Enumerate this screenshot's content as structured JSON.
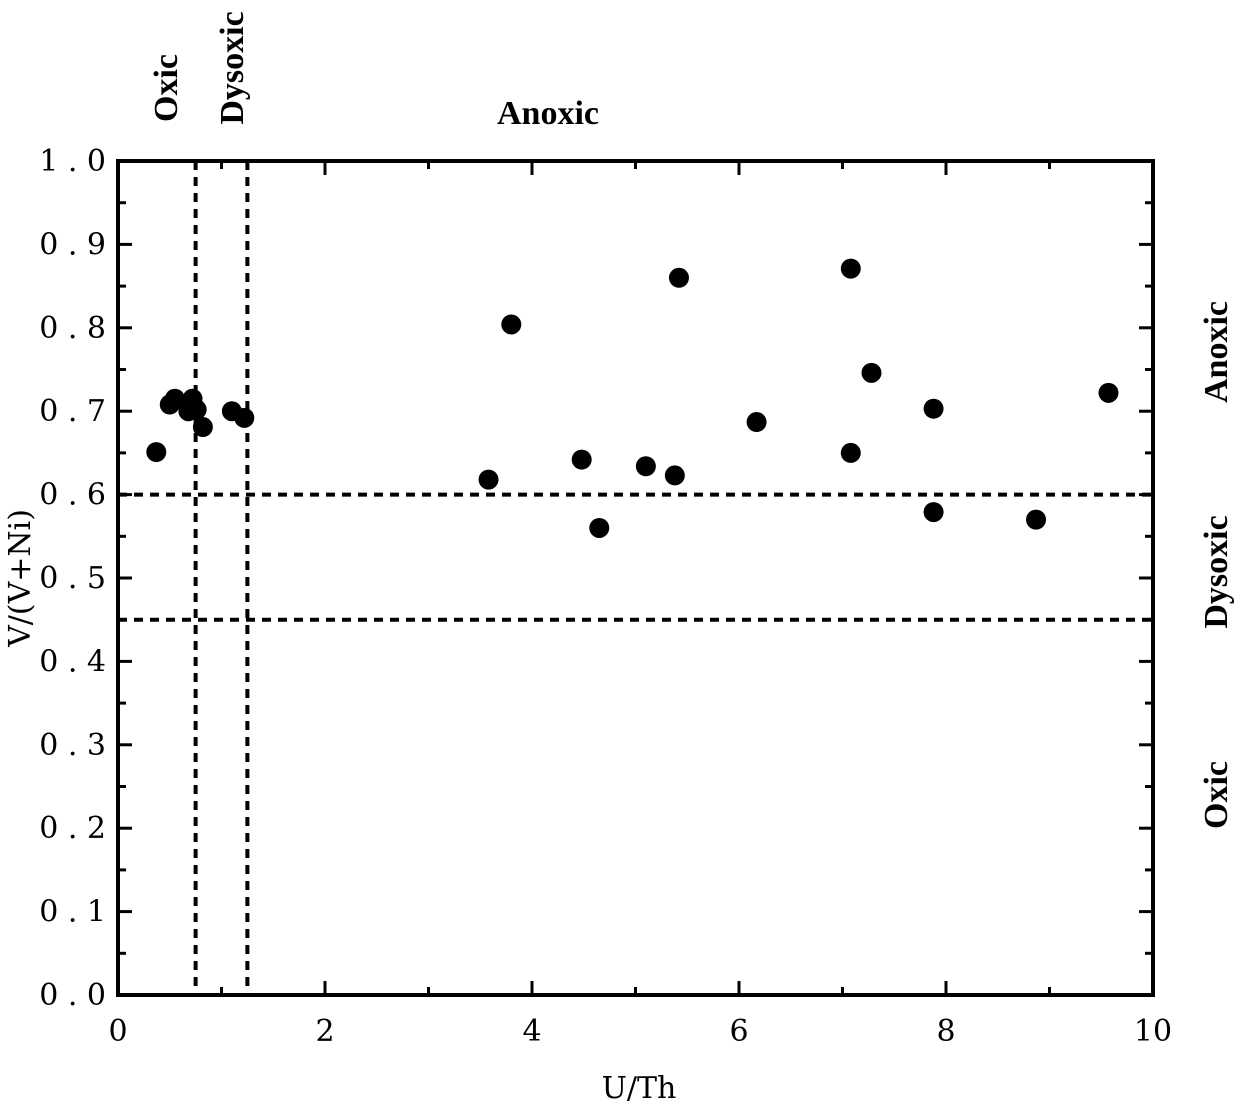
{
  "chart_data": {
    "type": "scatter",
    "xlabel": "U/Th",
    "ylabel": "V/(V+Ni)",
    "xlim": [
      0,
      10
    ],
    "ylim": [
      0,
      1.0
    ],
    "grid": false,
    "x_ticks": [
      "0",
      "2",
      "4",
      "6",
      "8",
      "10"
    ],
    "y_ticks": [
      "0.0",
      "0.1",
      "0.2",
      "0.3",
      "0.4",
      "0.5",
      "0.6",
      "0.7",
      "0.8",
      "0.9",
      "1.0"
    ],
    "threshold_lines": {
      "x": [
        0.75,
        1.25
      ],
      "y": [
        0.45,
        0.6
      ]
    },
    "zone_labels_top": [
      "Oxic",
      "Dysoxic",
      "Anoxic"
    ],
    "zone_labels_right": [
      "Anoxic",
      "Dysoxic",
      "Oxic"
    ],
    "points": [
      {
        "x": 0.37,
        "y": 0.651
      },
      {
        "x": 0.5,
        "y": 0.708
      },
      {
        "x": 0.55,
        "y": 0.715
      },
      {
        "x": 0.68,
        "y": 0.7
      },
      {
        "x": 0.72,
        "y": 0.715
      },
      {
        "x": 0.76,
        "y": 0.702
      },
      {
        "x": 0.82,
        "y": 0.681
      },
      {
        "x": 1.1,
        "y": 0.7
      },
      {
        "x": 1.22,
        "y": 0.692
      },
      {
        "x": 3.58,
        "y": 0.618
      },
      {
        "x": 3.8,
        "y": 0.804
      },
      {
        "x": 4.48,
        "y": 0.642
      },
      {
        "x": 4.65,
        "y": 0.56
      },
      {
        "x": 5.1,
        "y": 0.634
      },
      {
        "x": 5.38,
        "y": 0.623
      },
      {
        "x": 5.42,
        "y": 0.86
      },
      {
        "x": 6.17,
        "y": 0.687
      },
      {
        "x": 7.08,
        "y": 0.871
      },
      {
        "x": 7.08,
        "y": 0.65
      },
      {
        "x": 7.28,
        "y": 0.746
      },
      {
        "x": 7.88,
        "y": 0.703
      },
      {
        "x": 7.88,
        "y": 0.579
      },
      {
        "x": 8.87,
        "y": 0.57
      },
      {
        "x": 9.57,
        "y": 0.722
      }
    ],
    "colors": {
      "points": "#000000",
      "lines": "#000000"
    }
  }
}
